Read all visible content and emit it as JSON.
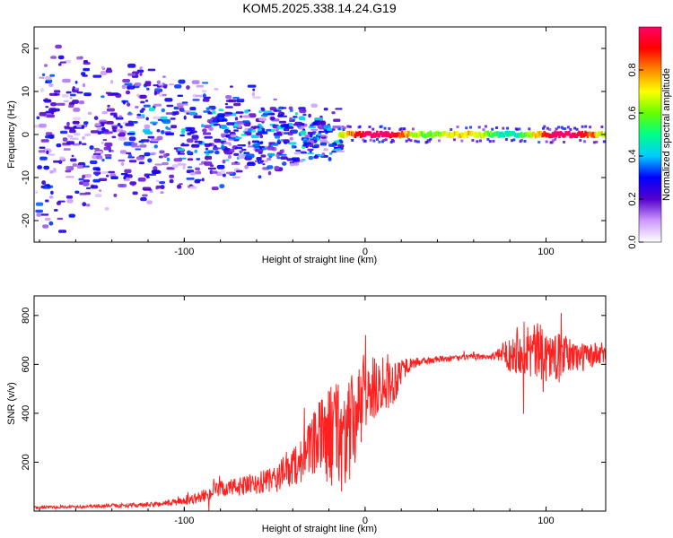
{
  "chart_data": [
    {
      "type": "heatmap",
      "title": "KOM5.2025.338.14.24.G19",
      "xlabel": "Height of straight line (km)",
      "ylabel": "Frequency (Hz)",
      "xlim": [
        -183,
        133
      ],
      "ylim": [
        -25,
        25
      ],
      "xticks": [
        -100,
        0,
        100
      ],
      "yticks": [
        -20,
        -10,
        0,
        10,
        20
      ],
      "colorbar": {
        "label": "Normalized spectral amplitude",
        "range": [
          0,
          1
        ],
        "ticks": [
          "0.0",
          "0.2",
          "0.4",
          "0.6",
          "0.8"
        ],
        "stops": [
          "#ffffff",
          "#cc99ff",
          "#5500cc",
          "#0000ff",
          "#00ccff",
          "#00ff88",
          "#66ff00",
          "#ffff00",
          "#ff8800",
          "#ff0000",
          "#ff0066"
        ]
      },
      "features": {
        "stable_tone": {
          "x_range": [
            -15,
            133
          ],
          "frequency_hz": 0.0,
          "amplitude_range": [
            0.3,
            1.0
          ]
        },
        "scatter_band": {
          "x_range": [
            -183,
            -15
          ],
          "frequency_hz_range": [
            -25,
            25
          ],
          "amplitude_range": [
            0.05,
            0.35
          ]
        }
      }
    },
    {
      "type": "line",
      "title": "",
      "xlabel": "Height of straight line (km)",
      "ylabel": "SNR (v/v)",
      "xlim": [
        -183,
        133
      ],
      "ylim": [
        0,
        880
      ],
      "xticks": [
        -100,
        0,
        100
      ],
      "yticks": [
        200,
        400,
        600,
        800
      ],
      "series": [
        {
          "name": "SNR",
          "color": "#ff2020",
          "x": [
            -183,
            -160,
            -140,
            -120,
            -100,
            -90,
            -80,
            -70,
            -60,
            -50,
            -40,
            -30,
            -25,
            -20,
            -15,
            -10,
            -5,
            0,
            5,
            10,
            15,
            20,
            25,
            30,
            40,
            50,
            60,
            70,
            75,
            80,
            85,
            90,
            95,
            100,
            105,
            110,
            115,
            120,
            125,
            130,
            133
          ],
          "y": [
            15,
            18,
            22,
            25,
            40,
            60,
            90,
            100,
            110,
            130,
            180,
            250,
            300,
            310,
            320,
            300,
            380,
            470,
            500,
            540,
            520,
            580,
            600,
            610,
            620,
            625,
            630,
            632,
            640,
            650,
            670,
            660,
            650,
            640,
            630,
            640,
            635,
            630,
            635,
            640,
            645
          ],
          "noise": [
            5,
            6,
            8,
            10,
            15,
            25,
            35,
            40,
            45,
            60,
            80,
            120,
            160,
            200,
            250,
            230,
            200,
            150,
            130,
            120,
            110,
            60,
            25,
            18,
            14,
            12,
            12,
            12,
            30,
            80,
            110,
            120,
            120,
            110,
            100,
            80,
            70,
            60,
            55,
            50,
            45
          ]
        }
      ]
    }
  ]
}
